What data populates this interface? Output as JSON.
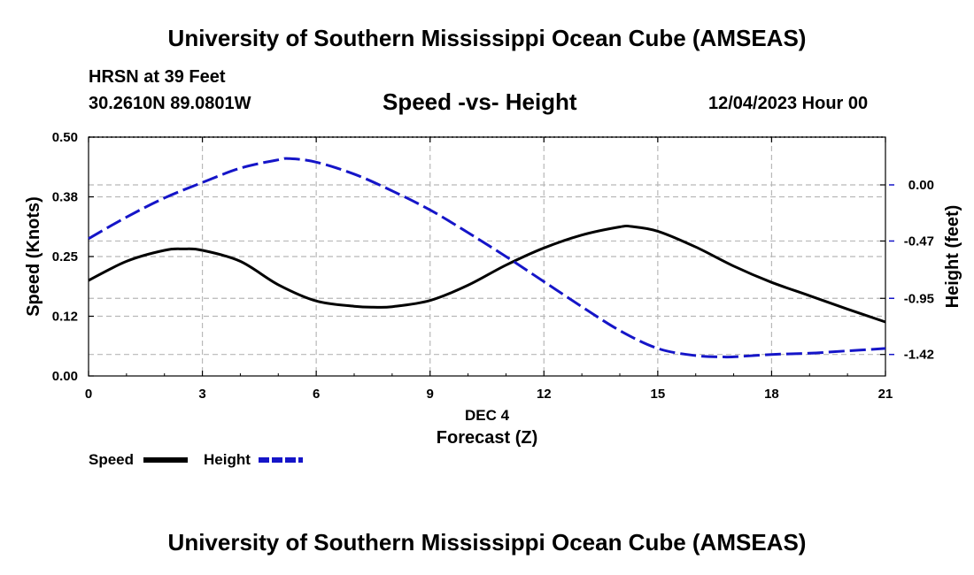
{
  "header": {
    "title": "University of Southern Mississippi Ocean Cube (AMSEAS)",
    "station": "HRSN at 39 Feet",
    "location": "30.2610N  89.0801W",
    "date": "12/04/2023 Hour 00",
    "footer_title": "University of Southern Mississippi Ocean Cube (AMSEAS)"
  },
  "legend": {
    "speed_label": "Speed",
    "height_label": "Height"
  },
  "colors": {
    "speed": "#000000",
    "height": "#1515c8",
    "grid": "#b8b8b8"
  },
  "chart_data": {
    "type": "line",
    "title": "Speed -vs- Height",
    "xlabel": "Forecast (Z)",
    "xlabel_date": "DEC 4",
    "ylabel": "Speed (Knots)",
    "y2label": "Height (feet)",
    "xlim": [
      0,
      21
    ],
    "ylim": [
      0,
      0.5
    ],
    "y2lim": [
      -1.6,
      0.4
    ],
    "x_ticks": [
      "0",
      "3",
      "6",
      "9",
      "12",
      "15",
      "18",
      "21"
    ],
    "x_tick_values": [
      0,
      3,
      6,
      9,
      12,
      15,
      18,
      21
    ],
    "y_ticks": [
      "0.00",
      "0.12",
      "0.25",
      "0.38",
      "0.50"
    ],
    "y_tick_values": [
      0,
      0.125,
      0.25,
      0.375,
      0.5
    ],
    "y2_ticks": [
      "0.00",
      "-0.47",
      "-0.95",
      "-1.42"
    ],
    "y2_tick_values": [
      0.0,
      -0.47,
      -0.95,
      -1.42
    ],
    "grid": true,
    "series": [
      {
        "name": "Speed",
        "axis": "left",
        "style": "solid",
        "x": [
          0,
          1,
          2,
          2.5,
          3,
          4,
          5,
          6,
          7,
          7.5,
          8,
          9,
          10,
          11,
          12,
          13,
          14,
          14.3,
          15,
          16,
          17,
          18,
          19,
          20,
          21
        ],
        "y": [
          0.2,
          0.24,
          0.263,
          0.266,
          0.263,
          0.24,
          0.191,
          0.157,
          0.146,
          0.144,
          0.145,
          0.158,
          0.19,
          0.232,
          0.268,
          0.295,
          0.312,
          0.313,
          0.303,
          0.27,
          0.23,
          0.196,
          0.168,
          0.14,
          0.113
        ]
      },
      {
        "name": "Height",
        "axis": "right",
        "style": "dashed",
        "x": [
          0,
          1,
          2,
          3,
          4,
          5,
          5.3,
          6,
          7,
          8,
          9,
          10,
          11,
          12,
          13,
          14,
          15,
          16,
          16.7,
          17,
          18,
          19,
          20,
          21
        ],
        "y": [
          -0.45,
          -0.27,
          -0.11,
          0.02,
          0.14,
          0.21,
          0.22,
          0.19,
          0.09,
          -0.05,
          -0.21,
          -0.4,
          -0.6,
          -0.81,
          -1.02,
          -1.22,
          -1.37,
          -1.43,
          -1.44,
          -1.44,
          -1.42,
          -1.41,
          -1.39,
          -1.37
        ]
      }
    ]
  }
}
